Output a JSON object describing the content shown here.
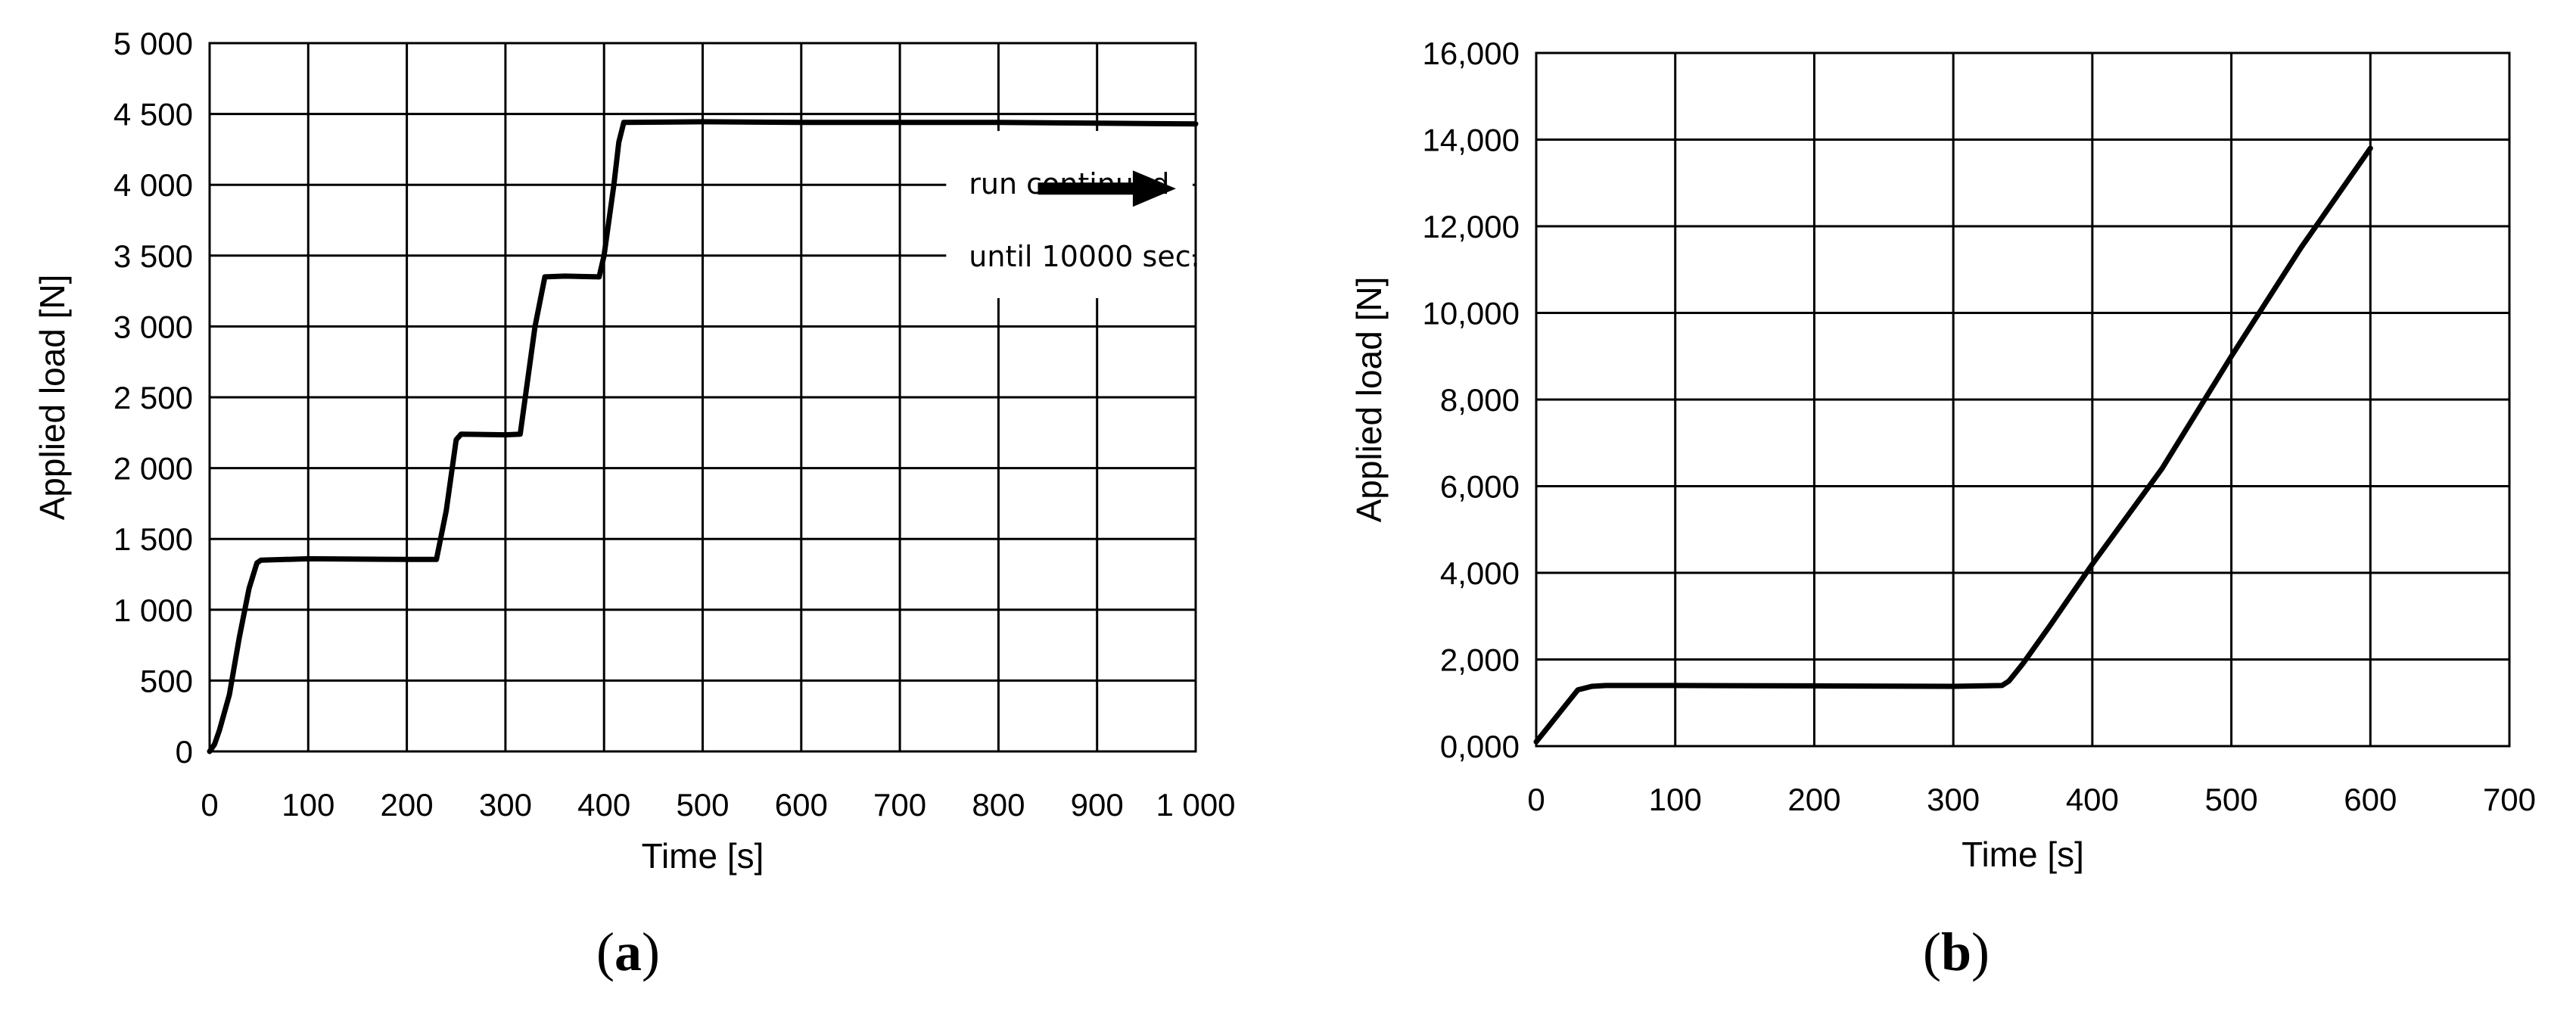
{
  "chart_data": [
    {
      "type": "line",
      "xlabel": "Time [s]",
      "ylabel": "Applied load [N]",
      "xlim": [
        0,
        1000
      ],
      "ylim": [
        0,
        5000
      ],
      "xticks": [
        0,
        100,
        200,
        300,
        400,
        500,
        600,
        700,
        800,
        900,
        1000
      ],
      "xtick_labels": [
        "0",
        "100",
        "200",
        "300",
        "400",
        "500",
        "600",
        "700",
        "800",
        "900",
        "1 000"
      ],
      "yticks": [
        0,
        500,
        1000,
        1500,
        2000,
        2500,
        3000,
        3500,
        4000,
        4500,
        5000
      ],
      "ytick_labels": [
        "0",
        "500",
        "1 000",
        "1 500",
        "2 000",
        "2 500",
        "3 000",
        "3 500",
        "4 000",
        "4 500",
        "5 000"
      ],
      "grid": true,
      "annotation": {
        "lines": [
          "run continued",
          "until 10000 sec."
        ],
        "x": 770,
        "y": 3950,
        "arrow_from": [
          840,
          4000
        ],
        "arrow_to": [
          980,
          4000
        ]
      },
      "caption": "a",
      "series": [
        {
          "x": [
            0,
            5,
            10,
            20,
            30,
            40,
            48,
            52,
            100,
            200,
            230,
            240,
            250,
            255,
            300,
            315,
            330,
            340,
            360,
            395,
            400,
            410,
            415,
            420,
            500,
            600,
            700,
            800,
            900,
            1000
          ],
          "y": [
            0,
            50,
            150,
            400,
            800,
            1150,
            1330,
            1350,
            1360,
            1355,
            1355,
            1700,
            2200,
            2240,
            2235,
            2240,
            3000,
            3350,
            3355,
            3350,
            3500,
            4000,
            4300,
            4440,
            4445,
            4440,
            4440,
            4440,
            4435,
            4430
          ]
        }
      ]
    },
    {
      "type": "line",
      "xlabel": "Time [s]",
      "ylabel": "Applied load [N]",
      "xlim": [
        0,
        700
      ],
      "ylim": [
        0,
        16000
      ],
      "xticks": [
        0,
        100,
        200,
        300,
        400,
        500,
        600,
        700
      ],
      "xtick_labels": [
        "0",
        "100",
        "200",
        "300",
        "400",
        "500",
        "600",
        "700"
      ],
      "yticks": [
        0,
        2000,
        4000,
        6000,
        8000,
        10000,
        12000,
        14000,
        16000
      ],
      "ytick_labels": [
        "0,000",
        "2,000",
        "4,000",
        "6,000",
        "8,000",
        "10,000",
        "12,000",
        "14,000",
        "16,000"
      ],
      "grid": true,
      "caption": "b",
      "series": [
        {
          "x": [
            0,
            10,
            20,
            30,
            40,
            50,
            100,
            200,
            300,
            335,
            340,
            350,
            370,
            400,
            450,
            500,
            550,
            600
          ],
          "y": [
            100,
            500,
            900,
            1300,
            1380,
            1400,
            1400,
            1390,
            1380,
            1400,
            1500,
            1900,
            2800,
            4200,
            6400,
            9000,
            11500,
            13800
          ]
        }
      ]
    }
  ]
}
